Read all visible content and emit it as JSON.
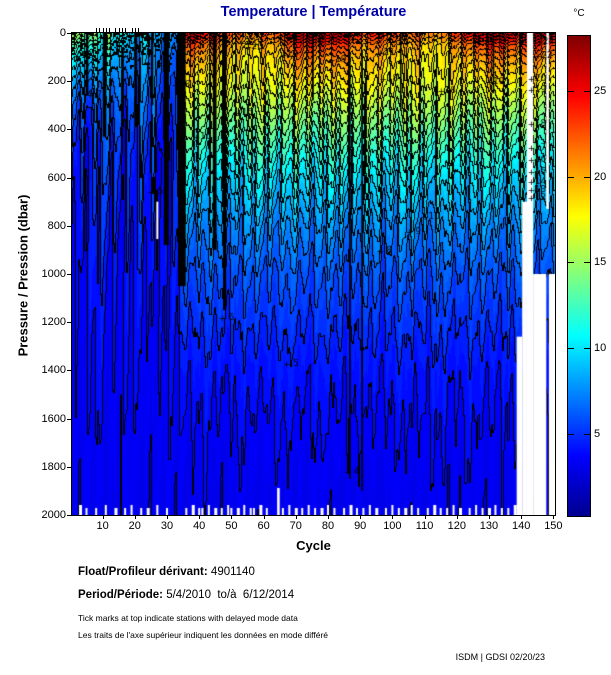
{
  "title": {
    "text": "Temperature | Température",
    "color": "#0000A8"
  },
  "axes": {
    "x": {
      "label": "Cycle",
      "ticks": [
        10,
        20,
        30,
        40,
        50,
        60,
        70,
        80,
        90,
        100,
        110,
        120,
        130,
        140,
        150
      ],
      "range": [
        0.5,
        150.5
      ]
    },
    "y": {
      "label": "Pressure / Pression (dbar)",
      "ticks": [
        0,
        200,
        400,
        600,
        800,
        1000,
        1200,
        1400,
        1600,
        1800,
        2000
      ],
      "range": [
        0,
        2000
      ]
    }
  },
  "colorbar": {
    "unit_label": "°C",
    "ticks": [
      5,
      10,
      15,
      20,
      25
    ]
  },
  "footer": {
    "float_label": "Float/Profileur dérivant:",
    "float_value": "4901140",
    "period_label": "Period/Période:",
    "period_value": "5/4/2010  to/à  6/12/2014",
    "note_en": "Tick marks at top indicate stations with delayed mode data",
    "note_fr": "Les traits de l'axe supérieur indiquent les données en mode différé",
    "credit": "ISDM | GDSI 02/20/23"
  },
  "chart_data": {
    "type": "heatmap",
    "subtype": "filled-contour-section",
    "title": "Temperature | Température",
    "xlabel": "Cycle",
    "ylabel": "Pressure / Pression (dbar)",
    "x_range": [
      1,
      150
    ],
    "y_range": [
      0,
      2000
    ],
    "color_range": [
      0.2,
      28.2
    ],
    "contour_interval": 1,
    "colormap": {
      "name": "jet",
      "stops": [
        [
          0,
          [
            0,
            0,
            143
          ]
        ],
        [
          0.125,
          [
            0,
            0,
            255
          ]
        ],
        [
          0.375,
          [
            0,
            255,
            255
          ]
        ],
        [
          0.625,
          [
            255,
            255,
            0
          ]
        ],
        [
          0.875,
          [
            255,
            0,
            0
          ]
        ],
        [
          1,
          [
            127,
            0,
            0
          ]
        ]
      ]
    },
    "regime_change_cycle": 34,
    "profile_pressures": [
      0,
      50,
      100,
      150,
      200,
      300,
      400,
      500,
      600,
      800,
      1000,
      1200,
      1400,
      1600,
      1800,
      2000
    ],
    "profile_cold": [
      13,
      11,
      9.5,
      8.5,
      7.5,
      6.3,
      5.6,
      5.1,
      4.8,
      4.4,
      4.15,
      3.95,
      3.8,
      3.65,
      3.5,
      3.4
    ],
    "profile_warm": [
      24,
      21,
      19.5,
      18.6,
      17.8,
      15.8,
      13.8,
      11.8,
      10.2,
      7.8,
      6.2,
      5.2,
      4.4,
      3.95,
      3.6,
      3.4
    ],
    "surface_temp_by_cycle": [
      14.5,
      15.5,
      16,
      14,
      13,
      15.5,
      16,
      15,
      13,
      12,
      14,
      15,
      12,
      11,
      10.5,
      11,
      12,
      11,
      10,
      9.5,
      9,
      10,
      11,
      10.5,
      9,
      8.5,
      8,
      9,
      8.5,
      8,
      9,
      8.5,
      9,
      25.5,
      26.5,
      26,
      25,
      26,
      27,
      26.5,
      25.5,
      24.5,
      25.5,
      26.5,
      25,
      24,
      23.5,
      24.5,
      23,
      22.5,
      22,
      22.5,
      23,
      22.5,
      22,
      21.5,
      22,
      21.5,
      22,
      22.5,
      23,
      22.5,
      22,
      22.5,
      23.5,
      24.5,
      25.5,
      26,
      26.5,
      27,
      27.5,
      27,
      26.5,
      27.5,
      28,
      27.5,
      27,
      27.5,
      28,
      27.5,
      27,
      26.5,
      27,
      27.5,
      27,
      26.5,
      26,
      25.5,
      25,
      24.5,
      24,
      23.5,
      24,
      24.5,
      25,
      24.5,
      24,
      23.5,
      23,
      23.5,
      24,
      23.5,
      23,
      22.5,
      22,
      22.5,
      23,
      22.5,
      22,
      21.5,
      21,
      21.5,
      22,
      21.5,
      21,
      21.5,
      22,
      22.5,
      23,
      23.5,
      24,
      24.5,
      25,
      25.5,
      26,
      26.5,
      27,
      27.5,
      27,
      27.5,
      28,
      27.5,
      27,
      27.5,
      28,
      27.5,
      27,
      26.5,
      26,
      26.5,
      27,
      27.5,
      27,
      27,
      27.5,
      28,
      27.5,
      27,
      27.5,
      28
    ],
    "contour_labels": [
      {
        "v": 18,
        "c": 35.5,
        "p": 215
      },
      {
        "v": 16,
        "c": 42,
        "p": 430
      },
      {
        "v": 22,
        "c": 56,
        "p": 40
      },
      {
        "v": 20,
        "c": 58,
        "p": 58
      },
      {
        "v": 19,
        "c": 69,
        "p": 90
      },
      {
        "v": 19,
        "c": 84,
        "p": 110
      },
      {
        "v": 21,
        "c": 99,
        "p": 80
      },
      {
        "v": 18,
        "c": 100,
        "p": 190
      },
      {
        "v": 18,
        "c": 118,
        "p": 240
      },
      {
        "v": 19,
        "c": 133,
        "p": 200
      },
      {
        "v": 10,
        "c": 113,
        "p": 760
      },
      {
        "v": 9,
        "c": 108,
        "p": 825
      },
      {
        "v": 8,
        "c": 99,
        "p": 905
      },
      {
        "v": 4,
        "c": 89,
        "p": 1820
      },
      {
        "v": 5,
        "c": 28,
        "p": 660
      },
      {
        "v": 7,
        "c": 9,
        "p": 255
      },
      {
        "v": 12,
        "c": 5,
        "p": 95
      },
      {
        "v": 15,
        "c": 55,
        "p": 330
      },
      {
        "v": 6,
        "c": 50,
        "p": 1180
      },
      {
        "v": 5,
        "c": 70,
        "p": 1370
      },
      {
        "v": 24,
        "c": 148.5,
        "p": 35
      },
      {
        "v": 22,
        "c": 148,
        "p": 95
      },
      {
        "v": 20,
        "c": 146,
        "p": 190
      },
      {
        "v": 19,
        "c": 146,
        "p": 237
      },
      {
        "v": 18,
        "c": 146,
        "p": 375
      },
      {
        "v": 17,
        "c": 146,
        "p": 475
      },
      {
        "v": 16,
        "c": 146,
        "p": 527
      },
      {
        "v": 15,
        "c": 146,
        "p": 577
      },
      {
        "v": 14,
        "c": 146,
        "p": 617
      },
      {
        "v": 13,
        "c": 146,
        "p": 651
      },
      {
        "v": 12,
        "c": 146,
        "p": 682
      }
    ],
    "black_bands": [
      {
        "c": 34.6,
        "w": 2.4,
        "p0": 0,
        "p1": 1050
      },
      {
        "c": 44.8,
        "w": 1.2,
        "p0": 0,
        "p1": 900
      },
      {
        "c": 47.9,
        "w": 1.0,
        "p0": 0,
        "p1": 1150
      },
      {
        "c": 10.6,
        "w": 1.1,
        "p0": 0,
        "p1": 430
      },
      {
        "c": 20.3,
        "w": 0.9,
        "p0": 0,
        "p1": 390
      },
      {
        "c": 29.8,
        "w": 1.6,
        "p0": 0,
        "p1": 880
      },
      {
        "c": 86.8,
        "w": 0.5,
        "p0": 80,
        "p1": 1850
      },
      {
        "c": 90.6,
        "w": 0.5,
        "p0": 80,
        "p1": 1900
      },
      {
        "c": 75.3,
        "w": 0.6,
        "p0": 0,
        "p1": 280
      },
      {
        "c": 102.6,
        "w": 0.5,
        "p0": 0,
        "p1": 320
      },
      {
        "c": 131.4,
        "w": 0.5,
        "p0": 0,
        "p1": 250
      },
      {
        "c": 5.2,
        "w": 0.8,
        "p0": 0,
        "p1": 260
      },
      {
        "c": 16.2,
        "w": 0.8,
        "p0": 60,
        "p1": 350
      },
      {
        "c": 25.4,
        "w": 0.7,
        "p0": 0,
        "p1": 300
      }
    ],
    "missing_data": {
      "full_columns": [
        {
          "c0": 141.8,
          "c1": 143.7
        }
      ],
      "deep_cutoffs": [
        {
          "c0": 138.6,
          "c1": 140.3,
          "below": 1260
        },
        {
          "c0": 140.3,
          "c1": 141.8,
          "below": 700
        },
        {
          "c0": 143.7,
          "c1": 147.8,
          "below": 1000
        },
        {
          "c0": 148.6,
          "c1": 150.5,
          "below": 1000
        }
      ],
      "patches": [
        {
          "c0": 26.7,
          "c1": 27.3,
          "p0": 700,
          "p1": 855
        },
        {
          "c0": 64.2,
          "c1": 65.0,
          "p0": 1888,
          "p1": 2000
        },
        {
          "c0": 147.8,
          "c1": 148.6,
          "p0": 0,
          "p1": 730
        }
      ]
    },
    "bottom_gap_cycles": [
      3,
      5,
      8,
      11,
      14,
      17,
      19,
      22,
      24,
      27,
      30,
      36,
      38,
      40,
      41,
      43,
      45,
      47,
      49,
      50,
      52,
      54,
      56,
      57,
      59,
      61,
      66,
      68,
      70,
      72,
      74,
      76,
      78,
      80,
      82,
      85,
      87,
      89,
      91,
      93,
      95,
      98,
      100,
      102,
      104,
      106,
      108,
      111,
      113,
      115,
      117,
      119,
      121,
      124,
      126,
      128,
      130,
      132,
      134,
      136,
      138
    ],
    "delayed_mode_tick_cycles": [
      8,
      9,
      10,
      11,
      12,
      14,
      15,
      16,
      17,
      19,
      20,
      21
    ]
  }
}
